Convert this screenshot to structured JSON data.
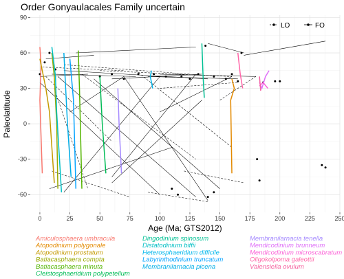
{
  "chart_data": {
    "type": "line",
    "title": "Order Gonyaulacales Family uncertain",
    "xlabel": "Age (Ma; GTS2012)",
    "ylabel": "Paleolatitude",
    "xlim": [
      -8,
      250
    ],
    "ylim": [
      -75,
      92
    ],
    "xticks": [
      0,
      25,
      50,
      75,
      100,
      125,
      150,
      175,
      200,
      225,
      250
    ],
    "yticks": [
      -60,
      -30,
      0,
      30,
      60,
      90
    ],
    "grid": true,
    "legend": {
      "position": "top-right",
      "entries": [
        {
          "label": "LO",
          "style": "dashed"
        },
        {
          "label": "FO",
          "style": "solid"
        }
      ]
    },
    "connections": [
      {
        "type": "solid",
        "x": [
          0,
          40
        ],
        "y": [
          40,
          42
        ]
      },
      {
        "type": "solid",
        "x": [
          10,
          80
        ],
        "y": [
          42,
          40
        ]
      },
      {
        "type": "solid",
        "x": [
          20,
          140
        ],
        "y": [
          45,
          38
        ]
      },
      {
        "type": "solid",
        "x": [
          60,
          135
        ],
        "y": [
          38,
          42
        ]
      },
      {
        "type": "solid",
        "x": [
          90,
          165
        ],
        "y": [
          40,
          38
        ]
      },
      {
        "type": "solid",
        "x": [
          100,
          180
        ],
        "y": [
          42,
          40
        ]
      },
      {
        "type": "solid",
        "x": [
          5,
          45
        ],
        "y": [
          55,
          58
        ]
      },
      {
        "type": "solid",
        "x": [
          30,
          130
        ],
        "y": [
          60,
          65
        ]
      },
      {
        "type": "solid",
        "x": [
          170,
          238
        ],
        "y": [
          58,
          70
        ]
      },
      {
        "type": "solid",
        "x": [
          140,
          170
        ],
        "y": [
          68,
          60
        ]
      },
      {
        "type": "solid",
        "x": [
          0,
          100
        ],
        "y": [
          35,
          -60
        ]
      },
      {
        "type": "solid",
        "x": [
          15,
          130
        ],
        "y": [
          40,
          -62
        ]
      },
      {
        "type": "solid",
        "x": [
          45,
          150
        ],
        "y": [
          38,
          -55
        ]
      },
      {
        "type": "solid",
        "x": [
          70,
          140
        ],
        "y": [
          40,
          -65
        ]
      },
      {
        "type": "solid",
        "x": [
          100,
          20
        ],
        "y": [
          40,
          -58
        ]
      },
      {
        "type": "solid",
        "x": [
          130,
          60
        ],
        "y": [
          42,
          -45
        ]
      },
      {
        "type": "solid",
        "x": [
          25,
          70
        ],
        "y": [
          10,
          40
        ]
      },
      {
        "type": "solid",
        "x": [
          8,
          110
        ],
        "y": [
          -55,
          -20
        ]
      },
      {
        "type": "solid",
        "x": [
          60,
          135
        ],
        "y": [
          -50,
          20
        ]
      },
      {
        "type": "solid",
        "x": [
          160,
          100
        ],
        "y": [
          40,
          10
        ]
      },
      {
        "type": "dashed",
        "x": [
          2,
          70
        ],
        "y": [
          48,
          45
        ]
      },
      {
        "type": "dashed",
        "x": [
          20,
          125
        ],
        "y": [
          50,
          42
        ]
      },
      {
        "type": "dashed",
        "x": [
          50,
          160
        ],
        "y": [
          45,
          40
        ]
      },
      {
        "type": "dashed",
        "x": [
          5,
          60
        ],
        "y": [
          40,
          -15
        ]
      },
      {
        "type": "dashed",
        "x": [
          35,
          130
        ],
        "y": [
          42,
          -30
        ]
      },
      {
        "type": "dashed",
        "x": [
          80,
          160
        ],
        "y": [
          45,
          -20
        ]
      },
      {
        "type": "dashed",
        "x": [
          10,
          75
        ],
        "y": [
          -40,
          -62
        ]
      },
      {
        "type": "dashed",
        "x": [
          90,
          140
        ],
        "y": [
          -58,
          -66
        ]
      },
      {
        "type": "dashed",
        "x": [
          120,
          170
        ],
        "y": [
          -40,
          -50
        ]
      },
      {
        "type": "dashed",
        "x": [
          150,
          180
        ],
        "y": [
          20,
          40
        ]
      },
      {
        "type": "dashed",
        "x": [
          12,
          40
        ],
        "y": [
          30,
          -55
        ]
      },
      {
        "type": "dashed",
        "x": [
          100,
          165
        ],
        "y": [
          30,
          35
        ]
      }
    ],
    "markers": [
      {
        "x": 181,
        "y": -30
      },
      {
        "x": 183,
        "y": -48
      },
      {
        "x": 235,
        "y": -35
      },
      {
        "x": 238,
        "y": -37
      },
      {
        "x": 186,
        "y": 35
      },
      {
        "x": 196,
        "y": 36
      },
      {
        "x": 200,
        "y": 36
      },
      {
        "x": 140,
        "y": -62
      },
      {
        "x": 145,
        "y": -58
      },
      {
        "x": 110,
        "y": -55
      },
      {
        "x": 115,
        "y": -60
      },
      {
        "x": 0,
        "y": 42
      },
      {
        "x": 4,
        "y": 52
      },
      {
        "x": 8,
        "y": 60
      },
      {
        "x": 13,
        "y": 46
      },
      {
        "x": 50,
        "y": 40
      },
      {
        "x": 60,
        "y": 42
      },
      {
        "x": 70,
        "y": 38
      },
      {
        "x": 82,
        "y": 42
      },
      {
        "x": 95,
        "y": 42
      },
      {
        "x": 105,
        "y": 40
      },
      {
        "x": 118,
        "y": 40
      },
      {
        "x": 125,
        "y": 38
      },
      {
        "x": 132,
        "y": 42
      },
      {
        "x": 145,
        "y": 40
      },
      {
        "x": 155,
        "y": 38
      },
      {
        "x": 160,
        "y": 42
      },
      {
        "x": 138,
        "y": 66
      },
      {
        "x": 168,
        "y": 60
      },
      {
        "x": 165,
        "y": 36
      }
    ],
    "series": [
      {
        "name": "Amiculosphaera umbracula",
        "color": "#f8766d",
        "x": [
          0,
          1,
          0,
          2
        ],
        "y": [
          65,
          50,
          20,
          -42
        ]
      },
      {
        "name": "Atopodinium polygonale",
        "color": "#e38900",
        "x": [
          160,
          162,
          159,
          160
        ],
        "y": [
          38,
          30,
          20,
          -42
        ]
      },
      {
        "name": "Atopodinium prostatum",
        "color": "#c49a00",
        "x": [
          0,
          5,
          8,
          10,
          12
        ],
        "y": [
          55,
          30,
          10,
          -20,
          -50
        ]
      },
      {
        "name": "Batiacasphaera compta",
        "color": "#99a800",
        "x": [
          10,
          12,
          14,
          15
        ],
        "y": [
          60,
          40,
          0,
          -55
        ]
      },
      {
        "name": "Batiacasphaera minuta",
        "color": "#53b400",
        "x": [
          32,
          33,
          35
        ],
        "y": [
          62,
          30,
          -55
        ]
      },
      {
        "name": "Cleistosphaeridium polypetellum",
        "color": "#00bc56",
        "x": [
          50,
          52,
          55
        ],
        "y": [
          40,
          0,
          -42
        ]
      },
      {
        "name": "Dingodinium spinosum",
        "color": "#00c094",
        "x": [
          135,
          136,
          137
        ],
        "y": [
          68,
          40,
          22
        ]
      },
      {
        "name": "Distatodinium biffii",
        "color": "#00bfc4",
        "x": [
          10,
          13,
          14,
          18
        ],
        "y": [
          65,
          40,
          10,
          -58
        ]
      },
      {
        "name": "Heterosphaeridium difficile",
        "color": "#00b6eb",
        "x": [
          93,
          92,
          94
        ],
        "y": [
          45,
          40,
          30
        ]
      },
      {
        "name": "Labyrinthodinium truncatum",
        "color": "#06a4ff",
        "x": [
          25,
          28,
          30
        ],
        "y": [
          55,
          20,
          -55
        ]
      },
      {
        "name": "Membranilarnacia picena",
        "color": "#00aee8",
        "x": [
          20,
          23,
          26
        ],
        "y": [
          60,
          0,
          -45
        ]
      },
      {
        "name": "Membranilarnacia tenella",
        "color": "#a58aff",
        "x": [
          65,
          66,
          68
        ],
        "y": [
          30,
          0,
          -42
        ]
      },
      {
        "name": "Mendicodinium brunneum",
        "color": "#df70f8",
        "x": [
          183,
          185,
          188,
          191
        ],
        "y": [
          35,
          30,
          40,
          45
        ]
      },
      {
        "name": "Mendicodinium microscabratum",
        "color": "#fb61d7",
        "x": [
          183,
          186,
          190
        ],
        "y": [
          32,
          35,
          30
        ]
      },
      {
        "name": "Oligokolpoma galeottii",
        "color": "#ff66a8",
        "x": [
          165,
          167,
          169
        ],
        "y": [
          60,
          42,
          30
        ]
      },
      {
        "name": "Valensiella ovulum",
        "color": "#f563a0",
        "x": [
          183,
          184
        ],
        "y": [
          40,
          28
        ]
      }
    ]
  }
}
